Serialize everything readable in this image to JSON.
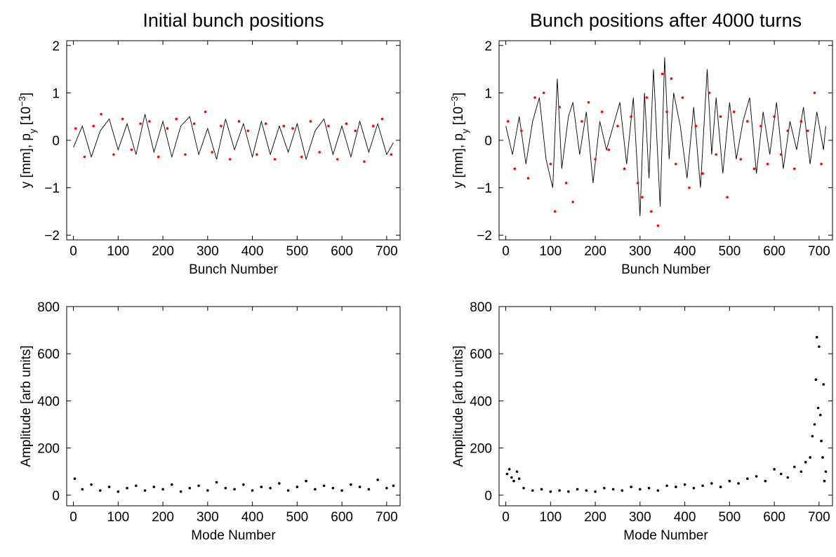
{
  "colors": {
    "line": "#000000",
    "red_points": "#ff0000",
    "dark_points": "#000000"
  },
  "chart_data": [
    {
      "id": "tl",
      "type": "line",
      "title": "Initial bunch positions",
      "xlabel": "Bunch Number",
      "ylabel_main": "y [mm], p",
      "ylabel_sub": "y",
      "ylabel_tail": " [10",
      "ylabel_sup": "−3",
      "ylabel_close": "]",
      "xlim": [
        -15,
        730
      ],
      "ylim": [
        -2.1,
        2.1
      ],
      "xticks": [
        0,
        100,
        200,
        300,
        400,
        500,
        600,
        700
      ],
      "yticks": [
        -2,
        -1,
        0,
        1,
        2
      ],
      "ytick_labels": [
        "−2",
        "−1",
        "0",
        "1",
        "2"
      ],
      "series": [
        {
          "kind": "line",
          "color": "#000000",
          "x": [
            0,
            20,
            40,
            60,
            80,
            100,
            120,
            140,
            160,
            180,
            200,
            220,
            240,
            260,
            280,
            300,
            320,
            340,
            360,
            380,
            400,
            420,
            440,
            460,
            480,
            500,
            520,
            540,
            560,
            580,
            600,
            620,
            640,
            660,
            680,
            700,
            715
          ],
          "y": [
            -0.15,
            0.3,
            -0.35,
            0.2,
            0.45,
            -0.2,
            0.35,
            -0.3,
            0.55,
            -0.25,
            0.4,
            -0.35,
            0.3,
            0.5,
            -0.3,
            0.25,
            -0.4,
            0.45,
            -0.2,
            0.35,
            -0.35,
            0.4,
            -0.3,
            0.3,
            -0.25,
            0.35,
            -0.4,
            0.2,
            0.45,
            -0.3,
            0.3,
            -0.35,
            0.4,
            -0.25,
            0.35,
            -0.3,
            -0.05
          ]
        },
        {
          "kind": "scatter",
          "color": "#ff0000",
          "x": [
            5,
            25,
            45,
            62,
            90,
            110,
            130,
            150,
            170,
            190,
            210,
            230,
            250,
            270,
            295,
            310,
            330,
            350,
            370,
            390,
            410,
            430,
            450,
            470,
            490,
            510,
            530,
            550,
            570,
            590,
            610,
            630,
            650,
            670,
            690,
            710
          ],
          "y": [
            0.25,
            -0.35,
            0.3,
            0.55,
            -0.3,
            0.45,
            -0.2,
            0.35,
            0.4,
            -0.35,
            0.25,
            0.45,
            -0.3,
            0.35,
            0.6,
            -0.25,
            0.3,
            -0.4,
            0.4,
            0.2,
            -0.3,
            0.35,
            -0.4,
            0.3,
            0.25,
            -0.35,
            0.4,
            -0.25,
            0.3,
            -0.4,
            0.35,
            0.2,
            -0.45,
            0.3,
            0.45,
            -0.3
          ]
        }
      ]
    },
    {
      "id": "tr",
      "type": "line",
      "title": "Bunch positions after 4000 turns",
      "xlabel": "Bunch Number",
      "ylabel_main": "y [mm], p",
      "ylabel_sub": "y",
      "ylabel_tail": " [10",
      "ylabel_sup": "−3",
      "ylabel_close": "]",
      "xlim": [
        -15,
        730
      ],
      "ylim": [
        -2.1,
        2.1
      ],
      "xticks": [
        0,
        100,
        200,
        300,
        400,
        500,
        600,
        700
      ],
      "yticks": [
        -2,
        -1,
        0,
        1,
        2
      ],
      "ytick_labels": [
        "−2",
        "−1",
        "0",
        "1",
        "2"
      ],
      "series": [
        {
          "kind": "line",
          "color": "#000000",
          "x": [
            0,
            15,
            30,
            45,
            60,
            75,
            90,
            105,
            115,
            125,
            140,
            150,
            165,
            180,
            195,
            210,
            225,
            240,
            255,
            270,
            285,
            300,
            310,
            320,
            330,
            345,
            355,
            365,
            375,
            390,
            405,
            420,
            435,
            450,
            460,
            470,
            485,
            500,
            515,
            530,
            545,
            560,
            575,
            590,
            605,
            620,
            635,
            650,
            665,
            680,
            695,
            710,
            715
          ],
          "y": [
            0.3,
            -0.3,
            0.5,
            -0.5,
            0.4,
            0.9,
            -0.4,
            -1.0,
            1.3,
            -0.6,
            0.5,
            0.8,
            -0.3,
            0.6,
            -0.9,
            0.4,
            -0.2,
            0.3,
            0.8,
            -0.5,
            0.9,
            -1.6,
            1.0,
            -0.8,
            1.5,
            -1.4,
            1.75,
            -0.4,
            1.0,
            0.3,
            -0.8,
            0.7,
            -1.0,
            1.5,
            -0.3,
            0.9,
            -0.7,
            0.8,
            -0.4,
            0.4,
            0.9,
            -0.7,
            0.6,
            -0.3,
            0.8,
            -0.6,
            0.4,
            -0.2,
            0.7,
            -0.5,
            0.6,
            -0.2,
            0.3
          ]
        },
        {
          "kind": "scatter",
          "color": "#ff0000",
          "x": [
            5,
            20,
            35,
            50,
            65,
            85,
            100,
            110,
            120,
            135,
            150,
            170,
            185,
            200,
            215,
            230,
            250,
            265,
            280,
            295,
            305,
            315,
            325,
            340,
            350,
            360,
            370,
            380,
            395,
            410,
            425,
            440,
            455,
            470,
            480,
            495,
            510,
            525,
            540,
            555,
            570,
            585,
            600,
            615,
            630,
            645,
            660,
            675,
            690,
            705
          ],
          "y": [
            0.4,
            -0.6,
            0.2,
            -0.8,
            0.9,
            1.0,
            -0.5,
            -1.5,
            0.7,
            -0.9,
            -1.3,
            0.4,
            0.8,
            -0.4,
            0.6,
            -0.2,
            0.3,
            -0.6,
            0.5,
            -0.9,
            -1.2,
            0.9,
            -1.5,
            -1.8,
            1.4,
            0.6,
            1.3,
            -0.5,
            0.9,
            -1.0,
            0.3,
            -0.7,
            1.0,
            -0.3,
            0.5,
            -1.2,
            0.6,
            -0.4,
            0.4,
            -0.6,
            0.3,
            -0.5,
            0.5,
            -0.3,
            0.2,
            -0.6,
            0.4,
            0.2,
            1.0,
            -0.5
          ]
        }
      ]
    },
    {
      "id": "bl",
      "type": "scatter",
      "title": "",
      "xlabel": "Mode Number",
      "ylabel_main": "Amplitude [arb units]",
      "xlim": [
        -15,
        730
      ],
      "ylim": [
        -45,
        800
      ],
      "xticks": [
        0,
        100,
        200,
        300,
        400,
        500,
        600,
        700
      ],
      "yticks": [
        0,
        200,
        400,
        600,
        800
      ],
      "ytick_labels": [
        "0",
        "200",
        "400",
        "600",
        "800"
      ],
      "series": [
        {
          "kind": "scatter",
          "color": "#000000",
          "x": [
            3,
            20,
            40,
            60,
            80,
            100,
            120,
            140,
            160,
            180,
            200,
            220,
            240,
            260,
            280,
            300,
            320,
            340,
            360,
            380,
            400,
            420,
            440,
            460,
            480,
            500,
            520,
            540,
            560,
            580,
            600,
            620,
            640,
            660,
            680,
            700,
            715
          ],
          "y": [
            70,
            25,
            45,
            20,
            35,
            15,
            30,
            40,
            20,
            35,
            25,
            45,
            15,
            30,
            40,
            20,
            55,
            30,
            25,
            45,
            20,
            35,
            30,
            50,
            20,
            35,
            60,
            25,
            40,
            30,
            20,
            45,
            35,
            25,
            65,
            30,
            40
          ]
        }
      ]
    },
    {
      "id": "br",
      "type": "scatter",
      "title": "",
      "xlabel": "Mode Number",
      "ylabel_main": "Amplitude [arb units]",
      "xlim": [
        -15,
        730
      ],
      "ylim": [
        -45,
        800
      ],
      "xticks": [
        0,
        100,
        200,
        300,
        400,
        500,
        600,
        700
      ],
      "yticks": [
        0,
        200,
        400,
        600,
        800
      ],
      "ytick_labels": [
        "0",
        "200",
        "400",
        "600",
        "800"
      ],
      "series": [
        {
          "kind": "scatter",
          "color": "#000000",
          "x": [
            3,
            8,
            13,
            18,
            25,
            30,
            40,
            60,
            80,
            100,
            120,
            140,
            160,
            180,
            200,
            220,
            240,
            260,
            280,
            300,
            320,
            340,
            360,
            380,
            400,
            420,
            440,
            460,
            480,
            500,
            520,
            540,
            560,
            580,
            600,
            615,
            630,
            645,
            660,
            670,
            680,
            685,
            690,
            693,
            695,
            698,
            700,
            703,
            705,
            708,
            710,
            712,
            715
          ],
          "y": [
            90,
            110,
            75,
            60,
            100,
            70,
            30,
            20,
            25,
            15,
            20,
            15,
            25,
            20,
            15,
            30,
            25,
            20,
            35,
            25,
            30,
            20,
            40,
            35,
            45,
            30,
            40,
            50,
            35,
            60,
            50,
            70,
            80,
            60,
            110,
            90,
            75,
            120,
            100,
            140,
            160,
            250,
            300,
            490,
            670,
            370,
            630,
            340,
            230,
            160,
            470,
            60,
            100
          ]
        }
      ]
    }
  ]
}
